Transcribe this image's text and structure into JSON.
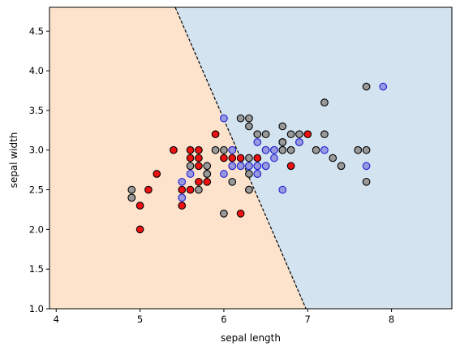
{
  "chart_data": {
    "type": "scatter",
    "title": "",
    "xlabel": "sepal length",
    "ylabel": "sepal width",
    "xlim": [
      3.92,
      8.72
    ],
    "ylim": [
      1.0,
      4.8
    ],
    "xticks": [
      4,
      5,
      6,
      7,
      8
    ],
    "yticks": [
      1.0,
      1.5,
      2.0,
      2.5,
      3.0,
      3.5,
      4.0,
      4.5
    ],
    "xtick_labels": [
      "4",
      "5",
      "6",
      "7",
      "8"
    ],
    "ytick_labels": [
      "1.0",
      "1.5",
      "2.0",
      "2.5",
      "3.0",
      "3.5",
      "4.0",
      "4.5"
    ],
    "grid": false,
    "legend": "none",
    "decision_boundary": {
      "points": [
        [
          5.42,
          4.8
        ],
        [
          6.98,
          1.0
        ]
      ],
      "style": "dashed",
      "color": "#000000"
    },
    "regions": [
      {
        "side": "left",
        "color": "#fde3cc"
      },
      {
        "side": "right",
        "color": "#d3e3f0"
      }
    ],
    "series": [
      {
        "face": "#ee1111",
        "edge": "#000000",
        "points": [
          [
            4.9,
            2.4
          ],
          [
            5.0,
            2.3
          ],
          [
            5.0,
            2.0
          ],
          [
            5.1,
            2.5
          ],
          [
            5.2,
            2.7
          ],
          [
            5.4,
            3.0
          ],
          [
            5.5,
            2.3
          ],
          [
            5.5,
            2.4
          ],
          [
            5.5,
            2.5
          ],
          [
            5.6,
            2.5
          ],
          [
            5.6,
            2.9
          ],
          [
            5.6,
            3.0
          ],
          [
            5.7,
            2.6
          ],
          [
            5.7,
            2.8
          ],
          [
            5.7,
            2.9
          ],
          [
            5.7,
            3.0
          ],
          [
            5.8,
            2.6
          ],
          [
            5.8,
            2.7
          ],
          [
            5.9,
            3.2
          ],
          [
            6.0,
            2.9
          ],
          [
            6.1,
            2.8
          ],
          [
            6.1,
            2.9
          ],
          [
            6.2,
            2.2
          ],
          [
            6.2,
            2.9
          ],
          [
            6.3,
            2.5
          ],
          [
            6.4,
            2.9
          ],
          [
            6.5,
            2.8
          ],
          [
            6.6,
            3.0
          ],
          [
            6.7,
            3.1
          ],
          [
            6.8,
            2.8
          ],
          [
            7.0,
            3.2
          ]
        ]
      },
      {
        "face": "#999999",
        "edge": "#000000",
        "points": [
          [
            4.9,
            2.5
          ],
          [
            4.9,
            2.4
          ],
          [
            5.6,
            2.8
          ],
          [
            5.7,
            2.5
          ],
          [
            5.8,
            2.7
          ],
          [
            5.8,
            2.8
          ],
          [
            5.9,
            3.0
          ],
          [
            6.0,
            3.0
          ],
          [
            6.0,
            2.2
          ],
          [
            6.1,
            3.0
          ],
          [
            6.1,
            2.6
          ],
          [
            6.2,
            3.4
          ],
          [
            6.2,
            2.8
          ],
          [
            6.3,
            3.4
          ],
          [
            6.3,
            3.3
          ],
          [
            6.3,
            2.9
          ],
          [
            6.3,
            2.8
          ],
          [
            6.3,
            2.7
          ],
          [
            6.3,
            2.5
          ],
          [
            6.4,
            3.2
          ],
          [
            6.4,
            2.8
          ],
          [
            6.4,
            2.7
          ],
          [
            6.5,
            3.2
          ],
          [
            6.5,
            3.0
          ],
          [
            6.7,
            3.3
          ],
          [
            6.7,
            3.1
          ],
          [
            6.7,
            3.0
          ],
          [
            6.8,
            3.2
          ],
          [
            6.8,
            3.0
          ],
          [
            6.9,
            3.2
          ],
          [
            6.9,
            3.1
          ],
          [
            7.1,
            3.0
          ],
          [
            7.2,
            3.6
          ],
          [
            7.2,
            3.2
          ],
          [
            7.3,
            2.9
          ],
          [
            7.4,
            2.8
          ],
          [
            7.6,
            3.0
          ],
          [
            7.7,
            3.8
          ],
          [
            7.7,
            3.0
          ],
          [
            7.7,
            2.6
          ]
        ]
      },
      {
        "face": "#9999dd",
        "edge": "#2222dd",
        "points": [
          [
            5.5,
            2.6
          ],
          [
            5.5,
            2.4
          ],
          [
            5.6,
            2.7
          ],
          [
            6.0,
            3.4
          ],
          [
            6.0,
            2.7
          ],
          [
            6.1,
            2.8
          ],
          [
            6.1,
            3.0
          ],
          [
            6.2,
            2.8
          ],
          [
            6.3,
            2.8
          ],
          [
            6.4,
            3.1
          ],
          [
            6.4,
            2.8
          ],
          [
            6.4,
            2.7
          ],
          [
            6.5,
            2.8
          ],
          [
            6.5,
            3.0
          ],
          [
            6.6,
            2.9
          ],
          [
            6.6,
            3.0
          ],
          [
            6.7,
            2.5
          ],
          [
            6.9,
            3.1
          ],
          [
            7.2,
            3.0
          ],
          [
            7.7,
            2.8
          ],
          [
            7.9,
            3.8
          ]
        ]
      }
    ]
  }
}
